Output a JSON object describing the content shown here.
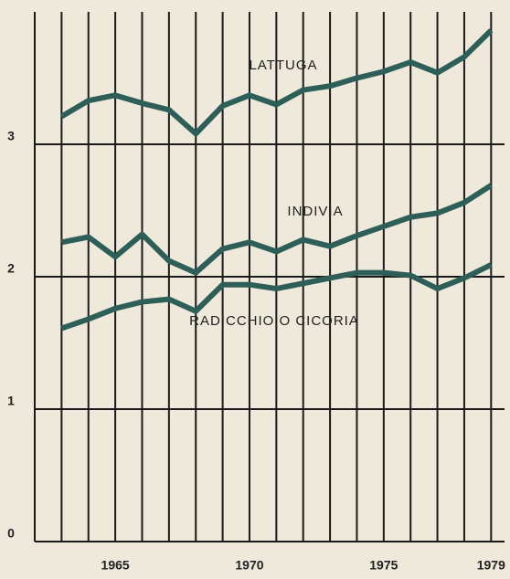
{
  "chart_data": {
    "type": "line",
    "x": [
      1963,
      1964,
      1965,
      1966,
      1967,
      1968,
      1969,
      1970,
      1971,
      1972,
      1973,
      1974,
      1975,
      1976,
      1977,
      1978,
      1979
    ],
    "series": [
      {
        "name": "LATTUGA",
        "color": "#2e5e58",
        "values": [
          3.21,
          3.33,
          3.37,
          3.31,
          3.26,
          3.08,
          3.29,
          3.37,
          3.3,
          3.41,
          3.44,
          3.5,
          3.55,
          3.62,
          3.54,
          3.66,
          3.86
        ]
      },
      {
        "name": "INDIVIA",
        "color": "#2e5e58",
        "values": [
          2.26,
          2.3,
          2.15,
          2.32,
          2.12,
          2.03,
          2.21,
          2.26,
          2.19,
          2.28,
          2.23,
          2.31,
          2.38,
          2.45,
          2.48,
          2.56,
          2.69
        ]
      },
      {
        "name": "RADICCHIO O CICORIA",
        "color": "#2e5e58",
        "values": [
          1.61,
          1.68,
          1.76,
          1.81,
          1.83,
          1.74,
          1.94,
          1.94,
          1.91,
          1.95,
          1.99,
          2.03,
          2.03,
          2.01,
          1.91,
          1.99,
          2.09
        ]
      }
    ],
    "xlim": [
      1962,
      1979.5
    ],
    "xticks": [
      1965,
      1970,
      1975,
      1979
    ],
    "x_gridlines": [
      1962,
      1963,
      1964,
      1965,
      1966,
      1967,
      1968,
      1969,
      1970,
      1971,
      1972,
      1973,
      1974,
      1975,
      1976,
      1977,
      1978,
      1979
    ],
    "ylim": [
      0,
      4
    ],
    "yticks": [
      0,
      1,
      2,
      3
    ],
    "grid": true
  }
}
